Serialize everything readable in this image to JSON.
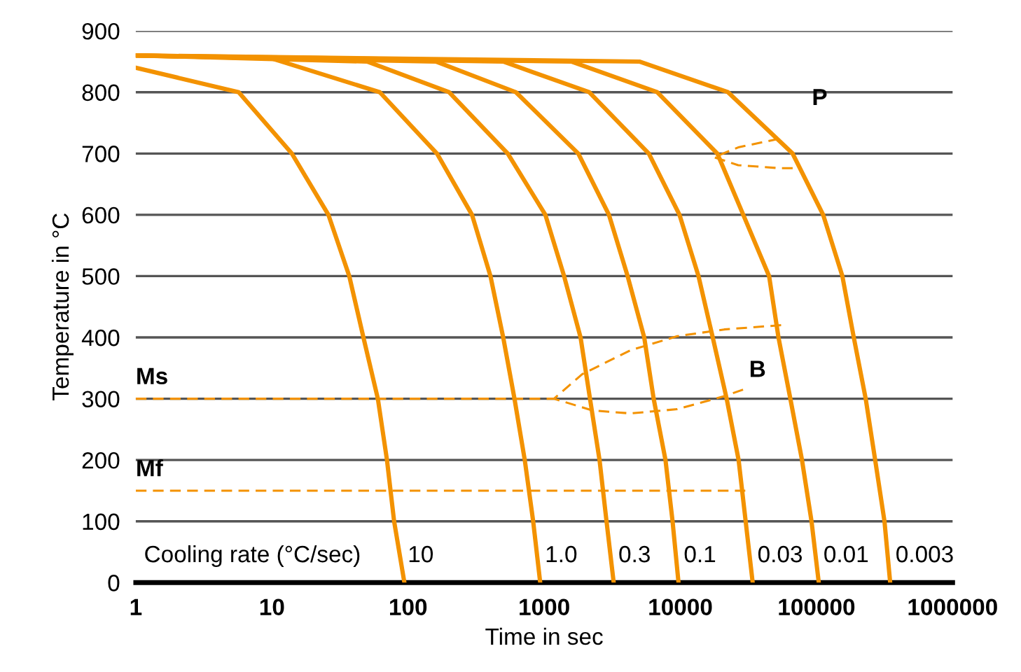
{
  "chart_data": {
    "type": "line",
    "xlabel": "Time in sec",
    "ylabel": "Temperature in °C",
    "log": "x",
    "xlim": [
      1,
      1000000
    ],
    "xticks": [
      1,
      10,
      100,
      1000,
      10000,
      100000,
      1000000
    ],
    "ylim": [
      0,
      900
    ],
    "yticks": [
      0,
      100,
      200,
      300,
      400,
      500,
      600,
      700,
      800,
      900
    ],
    "grid": "y",
    "legend": false,
    "marker": "none",
    "line_style": "solid",
    "series": [
      {
        "name": "10",
        "color": "#f39200",
        "x": [
          1,
          5.7,
          14,
          26,
          37,
          47,
          60,
          70,
          79,
          94
        ],
        "values": [
          840,
          800,
          700,
          600,
          500,
          400,
          300,
          200,
          100,
          0
        ]
      },
      {
        "name": "1.0",
        "color": "#f39200",
        "x": [
          1,
          10,
          62,
          163,
          295,
          403,
          500,
          605,
          720,
          830,
          935
        ],
        "values": [
          860,
          855,
          800,
          700,
          600,
          500,
          400,
          300,
          200,
          100,
          0
        ]
      },
      {
        "name": "0.3",
        "color": "#f39200",
        "x": [
          1,
          50,
          200,
          540,
          1020,
          1400,
          1850,
          2170,
          2550,
          2870,
          3240
        ],
        "values": [
          860,
          850,
          800,
          700,
          600,
          500,
          400,
          300,
          200,
          100,
          0
        ]
      },
      {
        "name": "0.1",
        "color": "#f39200",
        "x": [
          1,
          160,
          620,
          1780,
          2990,
          4100,
          5430,
          6370,
          7780,
          8770,
          9700
        ],
        "values": [
          860,
          850,
          800,
          700,
          600,
          500,
          400,
          300,
          200,
          100,
          0
        ]
      },
      {
        "name": "0.03",
        "color": "#f39200",
        "x": [
          1,
          500,
          2140,
          5870,
          9860,
          13600,
          17300,
          21900,
          26800,
          30200,
          34000
        ],
        "values": [
          860,
          850,
          800,
          700,
          600,
          500,
          400,
          300,
          200,
          100,
          0
        ]
      },
      {
        "name": "0.01",
        "color": "#f39200",
        "x": [
          1,
          1580,
          6760,
          18700,
          29000,
          44900,
          52600,
          64300,
          78300,
          92000,
          104000
        ],
        "values": [
          860,
          850,
          800,
          700,
          600,
          500,
          400,
          300,
          200,
          100,
          0
        ]
      },
      {
        "name": "0.003",
        "color": "#f39200",
        "x": [
          1,
          5000,
          22400,
          66800,
          112000,
          155000,
          188000,
          230000,
          270000,
          316000,
          348000
        ],
        "values": [
          860,
          850,
          800,
          700,
          600,
          500,
          400,
          300,
          200,
          100,
          0
        ]
      },
      {
        "name": "Ms",
        "color": "#f39200",
        "line_style": "dashed",
        "x": [
          1,
          1180
        ],
        "values": [
          300,
          300
        ]
      },
      {
        "name": "Mf",
        "color": "#f39200",
        "line_style": "dashed",
        "x": [
          1,
          30000
        ],
        "values": [
          150,
          150
        ]
      },
      {
        "name": "B",
        "color": "#f39200",
        "line_style": "dashed",
        "x": [
          55000,
          21000,
          9500,
          4300,
          1900,
          1180,
          2250,
          4300,
          9500,
          21000,
          29000
        ],
        "values": [
          420,
          413,
          402,
          379,
          340,
          300,
          281,
          276,
          283,
          304,
          315
        ]
      },
      {
        "name": "P",
        "color": "#f39200",
        "line_style": "dashed",
        "x": [
          53000,
          26600,
          17700,
          26600,
          54000,
          76000
        ],
        "values": [
          724,
          710,
          694,
          681,
          676,
          676
        ]
      }
    ],
    "annotations": [
      "Cooling rate (°C/sec)"
    ]
  }
}
